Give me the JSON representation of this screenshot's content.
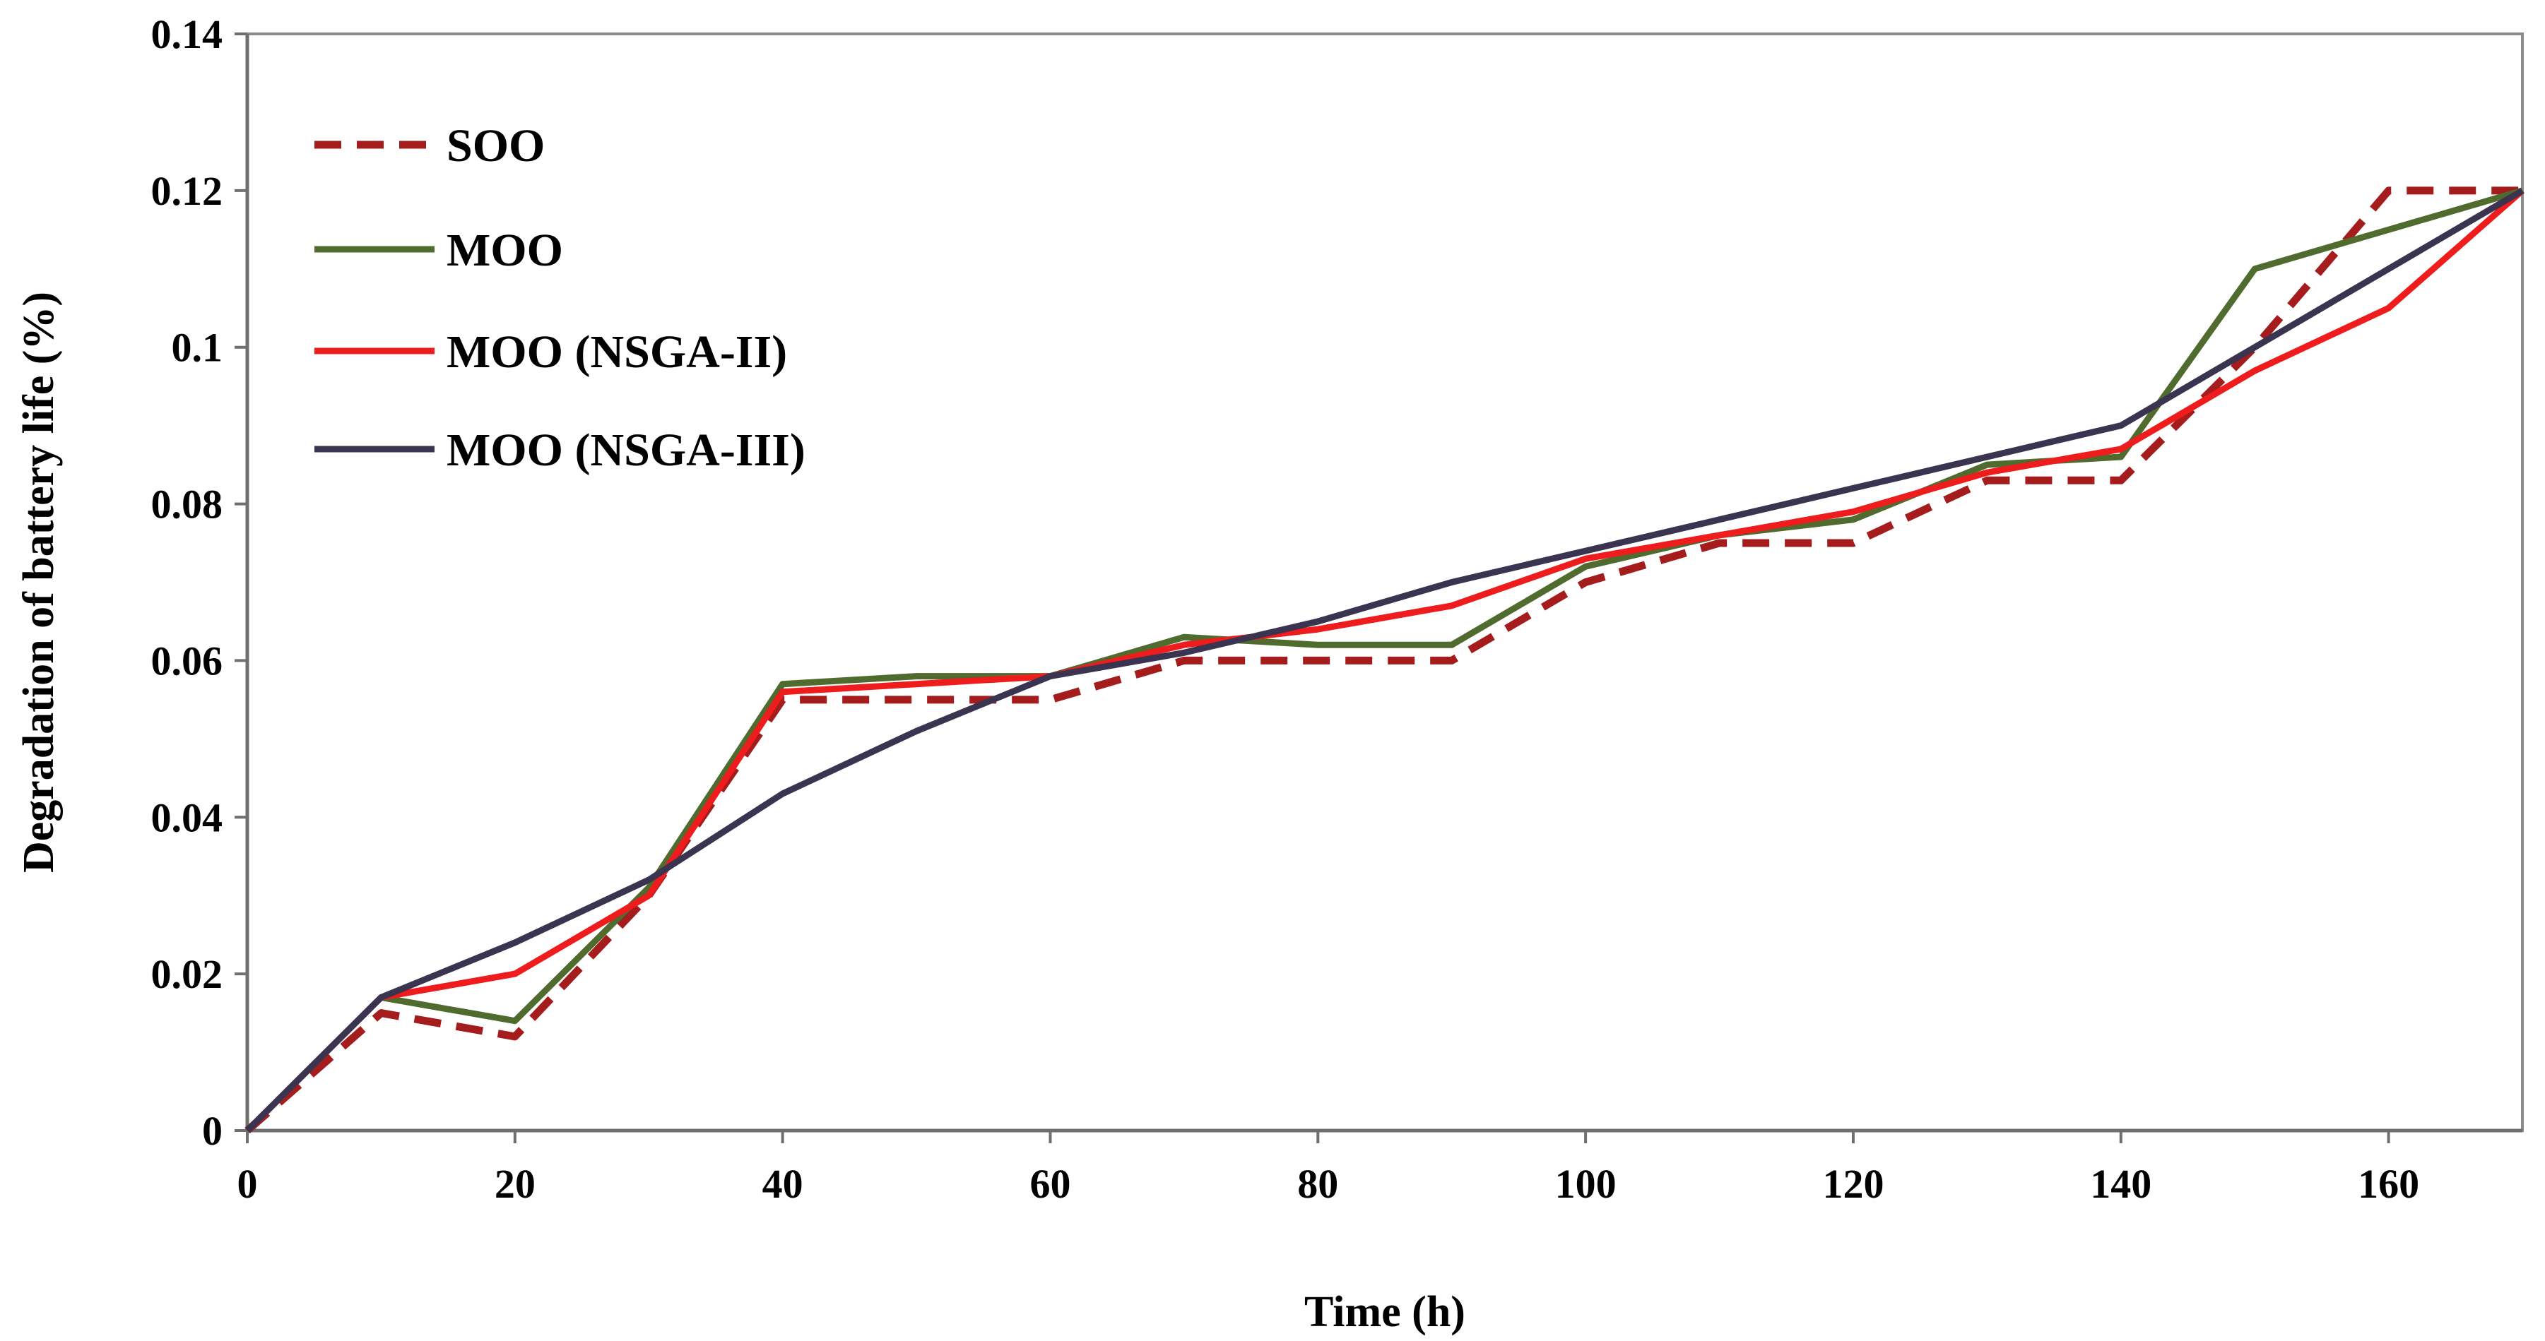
{
  "chart_data": {
    "type": "line",
    "title": "",
    "xlabel": "Time (h)",
    "ylabel": "Degradation of battery life (%)",
    "xlim": [
      0,
      170
    ],
    "ylim": [
      0,
      0.14
    ],
    "x_ticks": [
      0,
      20,
      40,
      60,
      80,
      100,
      120,
      140,
      160
    ],
    "x_tick_labels": [
      "0",
      "20",
      "40",
      "60",
      "80",
      "100",
      "120",
      "140",
      "160"
    ],
    "y_ticks": [
      0,
      0.02,
      0.04,
      0.06,
      0.08,
      0.1,
      0.12,
      0.14
    ],
    "y_tick_labels": [
      "0",
      "0.02",
      "0.04",
      "0.06",
      "0.08",
      "0.1",
      "0.12",
      "0.14"
    ],
    "grid": false,
    "legend_position": "top-left",
    "x": [
      0,
      10,
      20,
      30,
      40,
      50,
      60,
      70,
      80,
      90,
      100,
      110,
      120,
      130,
      140,
      150,
      160,
      170
    ],
    "series": [
      {
        "name": "SOO",
        "color": "#a51c1c",
        "dash": true,
        "values": [
          0,
          0.015,
          0.012,
          0.03,
          0.055,
          0.055,
          0.055,
          0.06,
          0.06,
          0.06,
          0.07,
          0.075,
          0.075,
          0.083,
          0.083,
          0.1,
          0.12,
          0.12
        ]
      },
      {
        "name": "MOO",
        "color": "#4f6b2e",
        "dash": false,
        "values": [
          0,
          0.017,
          0.014,
          0.031,
          0.057,
          0.058,
          0.058,
          0.063,
          0.062,
          0.062,
          0.072,
          0.076,
          0.078,
          0.085,
          0.086,
          0.11,
          0.115,
          0.12
        ]
      },
      {
        "name": "MOO (NSGA-II)",
        "color": "#ee1c1c",
        "dash": false,
        "values": [
          0,
          0.017,
          0.02,
          0.03,
          0.056,
          0.057,
          0.058,
          0.062,
          0.064,
          0.067,
          0.073,
          0.076,
          0.079,
          0.084,
          0.087,
          0.097,
          0.105,
          0.12
        ]
      },
      {
        "name": "MOO (NSGA-III)",
        "color": "#3a3450",
        "dash": false,
        "values": [
          0,
          0.017,
          0.024,
          0.032,
          0.043,
          0.051,
          0.058,
          0.061,
          0.065,
          0.07,
          0.074,
          0.078,
          0.082,
          0.086,
          0.09,
          0.1,
          0.11,
          0.12
        ]
      }
    ]
  }
}
